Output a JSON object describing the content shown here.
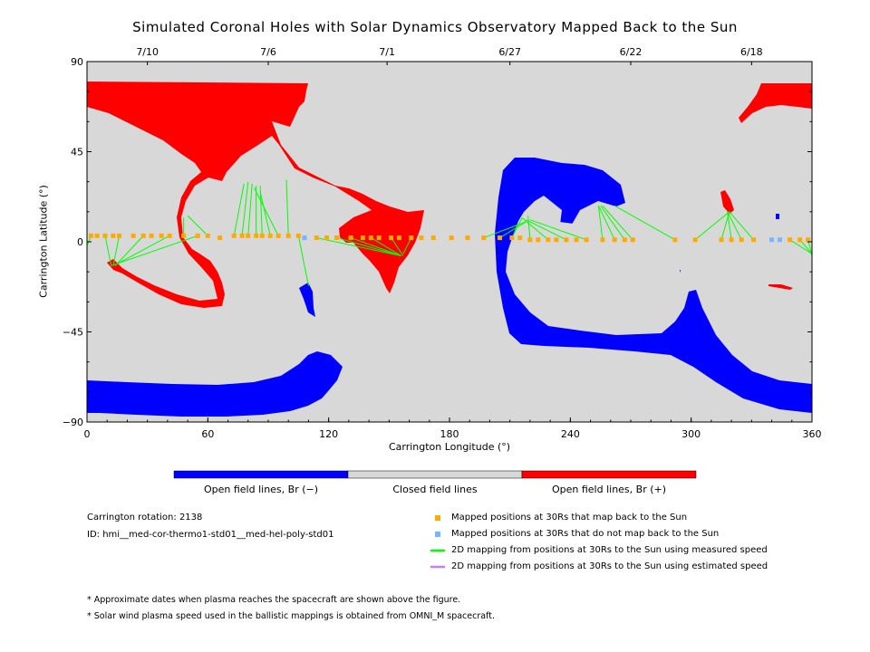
{
  "chart_data": {
    "type": "heatmap",
    "title": "Simulated Coronal Holes with Solar Dynamics Observatory Mapped Back to the Sun",
    "xlabel": "Carrington Longitude (°)",
    "ylabel": "Carrington Latitude (°)",
    "xlim": [
      0,
      360
    ],
    "ylim": [
      -90,
      90
    ],
    "x_ticks": [
      "0",
      "60",
      "120",
      "180",
      "240",
      "300",
      "360"
    ],
    "y_ticks": [
      "90",
      "45",
      "0",
      "-45",
      "-90"
    ],
    "top_axis_dates": [
      {
        "label": "7/10",
        "lon": 30
      },
      {
        "label": "7/6",
        "lon": 90
      },
      {
        "label": "7/1",
        "lon": 149
      },
      {
        "label": "6/27",
        "lon": 210
      },
      {
        "label": "6/22",
        "lon": 270
      },
      {
        "label": "6/18",
        "lon": 330
      }
    ],
    "colorbar": [
      {
        "label": "Open field lines, Br (−)",
        "color": "#0000ff"
      },
      {
        "label": "Closed field lines",
        "color": "#d8d8d8"
      },
      {
        "label": "Open field lines, Br (+)",
        "color": "#ff0000"
      }
    ],
    "mapped_points": [
      {
        "lon": 2,
        "lat": 3,
        "maps_back": true
      },
      {
        "lon": 5,
        "lat": 3,
        "maps_back": true
      },
      {
        "lon": 9,
        "lat": 3,
        "maps_back": true
      },
      {
        "lon": 13,
        "lat": 3,
        "maps_back": true
      },
      {
        "lon": 16,
        "lat": 3,
        "maps_back": true
      },
      {
        "lon": 23,
        "lat": 3,
        "maps_back": true
      },
      {
        "lon": 28,
        "lat": 3,
        "maps_back": true
      },
      {
        "lon": 32,
        "lat": 3,
        "maps_back": true
      },
      {
        "lon": 37,
        "lat": 3,
        "maps_back": true
      },
      {
        "lon": 41,
        "lat": 3,
        "maps_back": true
      },
      {
        "lon": 48,
        "lat": 3,
        "maps_back": true
      },
      {
        "lon": 55,
        "lat": 3,
        "maps_back": true
      },
      {
        "lon": 60,
        "lat": 3,
        "maps_back": true
      },
      {
        "lon": 66,
        "lat": 2,
        "maps_back": true
      },
      {
        "lon": 73,
        "lat": 3,
        "maps_back": true
      },
      {
        "lon": 77,
        "lat": 3,
        "maps_back": true
      },
      {
        "lon": 80,
        "lat": 3,
        "maps_back": true
      },
      {
        "lon": 84,
        "lat": 3,
        "maps_back": true
      },
      {
        "lon": 87,
        "lat": 3,
        "maps_back": true
      },
      {
        "lon": 91,
        "lat": 3,
        "maps_back": true
      },
      {
        "lon": 95,
        "lat": 3,
        "maps_back": true
      },
      {
        "lon": 100,
        "lat": 3,
        "maps_back": true
      },
      {
        "lon": 105,
        "lat": 3,
        "maps_back": true
      },
      {
        "lon": 108,
        "lat": 2,
        "maps_back": false
      },
      {
        "lon": 114,
        "lat": 2,
        "maps_back": true
      },
      {
        "lon": 119,
        "lat": 2,
        "maps_back": true
      },
      {
        "lon": 124,
        "lat": 2,
        "maps_back": true
      },
      {
        "lon": 131,
        "lat": 2,
        "maps_back": true
      },
      {
        "lon": 137,
        "lat": 2,
        "maps_back": true
      },
      {
        "lon": 141,
        "lat": 2,
        "maps_back": true
      },
      {
        "lon": 145,
        "lat": 2,
        "maps_back": true
      },
      {
        "lon": 151,
        "lat": 2,
        "maps_back": true
      },
      {
        "lon": 155,
        "lat": 2,
        "maps_back": true
      },
      {
        "lon": 161,
        "lat": 2,
        "maps_back": true
      },
      {
        "lon": 166,
        "lat": 2,
        "maps_back": true
      },
      {
        "lon": 172,
        "lat": 2,
        "maps_back": true
      },
      {
        "lon": 181,
        "lat": 2,
        "maps_back": true
      },
      {
        "lon": 189,
        "lat": 2,
        "maps_back": true
      },
      {
        "lon": 197,
        "lat": 2,
        "maps_back": true
      },
      {
        "lon": 205,
        "lat": 2,
        "maps_back": true
      },
      {
        "lon": 211,
        "lat": 2,
        "maps_back": true
      },
      {
        "lon": 215,
        "lat": 2,
        "maps_back": true
      },
      {
        "lon": 220,
        "lat": 1,
        "maps_back": true
      },
      {
        "lon": 224,
        "lat": 1,
        "maps_back": true
      },
      {
        "lon": 229,
        "lat": 1,
        "maps_back": true
      },
      {
        "lon": 233,
        "lat": 1,
        "maps_back": true
      },
      {
        "lon": 238,
        "lat": 1,
        "maps_back": true
      },
      {
        "lon": 243,
        "lat": 1,
        "maps_back": true
      },
      {
        "lon": 248,
        "lat": 1,
        "maps_back": true
      },
      {
        "lon": 256,
        "lat": 1,
        "maps_back": true
      },
      {
        "lon": 262,
        "lat": 1,
        "maps_back": true
      },
      {
        "lon": 267,
        "lat": 1,
        "maps_back": true
      },
      {
        "lon": 271,
        "lat": 1,
        "maps_back": true
      },
      {
        "lon": 292,
        "lat": 1,
        "maps_back": true
      },
      {
        "lon": 302,
        "lat": 1,
        "maps_back": true
      },
      {
        "lon": 315,
        "lat": 1,
        "maps_back": true
      },
      {
        "lon": 320,
        "lat": 1,
        "maps_back": true
      },
      {
        "lon": 325,
        "lat": 1,
        "maps_back": true
      },
      {
        "lon": 331,
        "lat": 1,
        "maps_back": true
      },
      {
        "lon": 340,
        "lat": 1,
        "maps_back": false
      },
      {
        "lon": 344,
        "lat": 1,
        "maps_back": false
      },
      {
        "lon": 349,
        "lat": 1,
        "maps_back": true
      },
      {
        "lon": 354,
        "lat": 1,
        "maps_back": true
      },
      {
        "lon": 358,
        "lat": 1,
        "maps_back": true
      }
    ],
    "mapping_lines": [
      {
        "from": [
          2,
          3
        ],
        "to": [
          0,
          -2
        ]
      },
      {
        "from": [
          9,
          3
        ],
        "to": [
          12,
          -12
        ]
      },
      {
        "from": [
          16,
          3
        ],
        "to": [
          13,
          -12
        ]
      },
      {
        "from": [
          28,
          3
        ],
        "to": [
          14,
          -12
        ]
      },
      {
        "from": [
          41,
          3
        ],
        "to": [
          15,
          -11
        ]
      },
      {
        "from": [
          55,
          3
        ],
        "to": [
          12,
          -12
        ]
      },
      {
        "from": [
          48,
          3
        ],
        "to": [
          48,
          12
        ]
      },
      {
        "from": [
          60,
          3
        ],
        "to": [
          50,
          13
        ]
      },
      {
        "from": [
          73,
          3
        ],
        "to": [
          78,
          29
        ]
      },
      {
        "from": [
          77,
          3
        ],
        "to": [
          80,
          30
        ]
      },
      {
        "from": [
          80,
          3
        ],
        "to": [
          82,
          29
        ]
      },
      {
        "from": [
          84,
          3
        ],
        "to": [
          84,
          28
        ]
      },
      {
        "from": [
          87,
          3
        ],
        "to": [
          86,
          28
        ]
      },
      {
        "from": [
          91,
          3
        ],
        "to": [
          86,
          25
        ]
      },
      {
        "from": [
          95,
          3
        ],
        "to": [
          83,
          27
        ]
      },
      {
        "from": [
          100,
          3
        ],
        "to": [
          99,
          31
        ]
      },
      {
        "from": [
          105,
          3
        ],
        "to": [
          110,
          -22
        ]
      },
      {
        "from": [
          114,
          2
        ],
        "to": [
          156,
          -7
        ]
      },
      {
        "from": [
          124,
          2
        ],
        "to": [
          156,
          -7
        ]
      },
      {
        "from": [
          131,
          2
        ],
        "to": [
          156,
          -7
        ]
      },
      {
        "from": [
          141,
          2
        ],
        "to": [
          156,
          -7
        ]
      },
      {
        "from": [
          151,
          2
        ],
        "to": [
          157,
          -7
        ]
      },
      {
        "from": [
          161,
          2
        ],
        "to": [
          157,
          -6
        ]
      },
      {
        "from": [
          197,
          2
        ],
        "to": [
          218,
          10
        ]
      },
      {
        "from": [
          205,
          2
        ],
        "to": [
          218,
          10
        ]
      },
      {
        "from": [
          211,
          2
        ],
        "to": [
          216,
          12
        ]
      },
      {
        "from": [
          220,
          1
        ],
        "to": [
          219,
          13
        ]
      },
      {
        "from": [
          229,
          1
        ],
        "to": [
          216,
          12
        ]
      },
      {
        "from": [
          238,
          1
        ],
        "to": [
          218,
          11
        ]
      },
      {
        "from": [
          248,
          1
        ],
        "to": [
          220,
          11
        ]
      },
      {
        "from": [
          256,
          1
        ],
        "to": [
          254,
          18
        ]
      },
      {
        "from": [
          262,
          1
        ],
        "to": [
          254,
          18
        ]
      },
      {
        "from": [
          267,
          1
        ],
        "to": [
          255,
          18
        ]
      },
      {
        "from": [
          271,
          1
        ],
        "to": [
          256,
          18
        ]
      },
      {
        "from": [
          292,
          1
        ],
        "to": [
          262,
          18
        ]
      },
      {
        "from": [
          302,
          1
        ],
        "to": [
          319,
          15
        ]
      },
      {
        "from": [
          315,
          1
        ],
        "to": [
          319,
          15
        ]
      },
      {
        "from": [
          320,
          1
        ],
        "to": [
          318,
          15
        ]
      },
      {
        "from": [
          325,
          1
        ],
        "to": [
          318,
          15
        ]
      },
      {
        "from": [
          331,
          1
        ],
        "to": [
          319,
          15
        ]
      },
      {
        "from": [
          349,
          1
        ],
        "to": [
          360,
          -6
        ]
      },
      {
        "from": [
          354,
          1
        ],
        "to": [
          360,
          -6
        ]
      },
      {
        "from": [
          358,
          1
        ],
        "to": [
          360,
          -7
        ]
      }
    ],
    "grid": false
  },
  "info": {
    "rotation": "Carrington rotation: 2138",
    "id": "ID: hmi__med-cor-thermo1-std01__med-hel-poly-std01"
  },
  "legend": [
    {
      "label": "Mapped positions at 30Rs that map back to the Sun",
      "color": "#ffaa00",
      "kind": "square"
    },
    {
      "label": "Mapped positions at 30Rs that do not map back to the Sun",
      "color": "#77b5ff",
      "kind": "square"
    },
    {
      "label": "2D mapping from positions at 30Rs to the Sun using measured speed",
      "color": "#00ff00",
      "kind": "line"
    },
    {
      "label": "2D mapping from positions at 30Rs to the Sun using estimated speed",
      "color": "#c080ff",
      "kind": "line"
    }
  ],
  "notes": [
    "* Approximate dates when plasma reaches the spacecraft are shown above the figure.",
    "* Solar wind plasma speed used in the ballistic mappings is obtained from OMNI_M spacecraft."
  ]
}
